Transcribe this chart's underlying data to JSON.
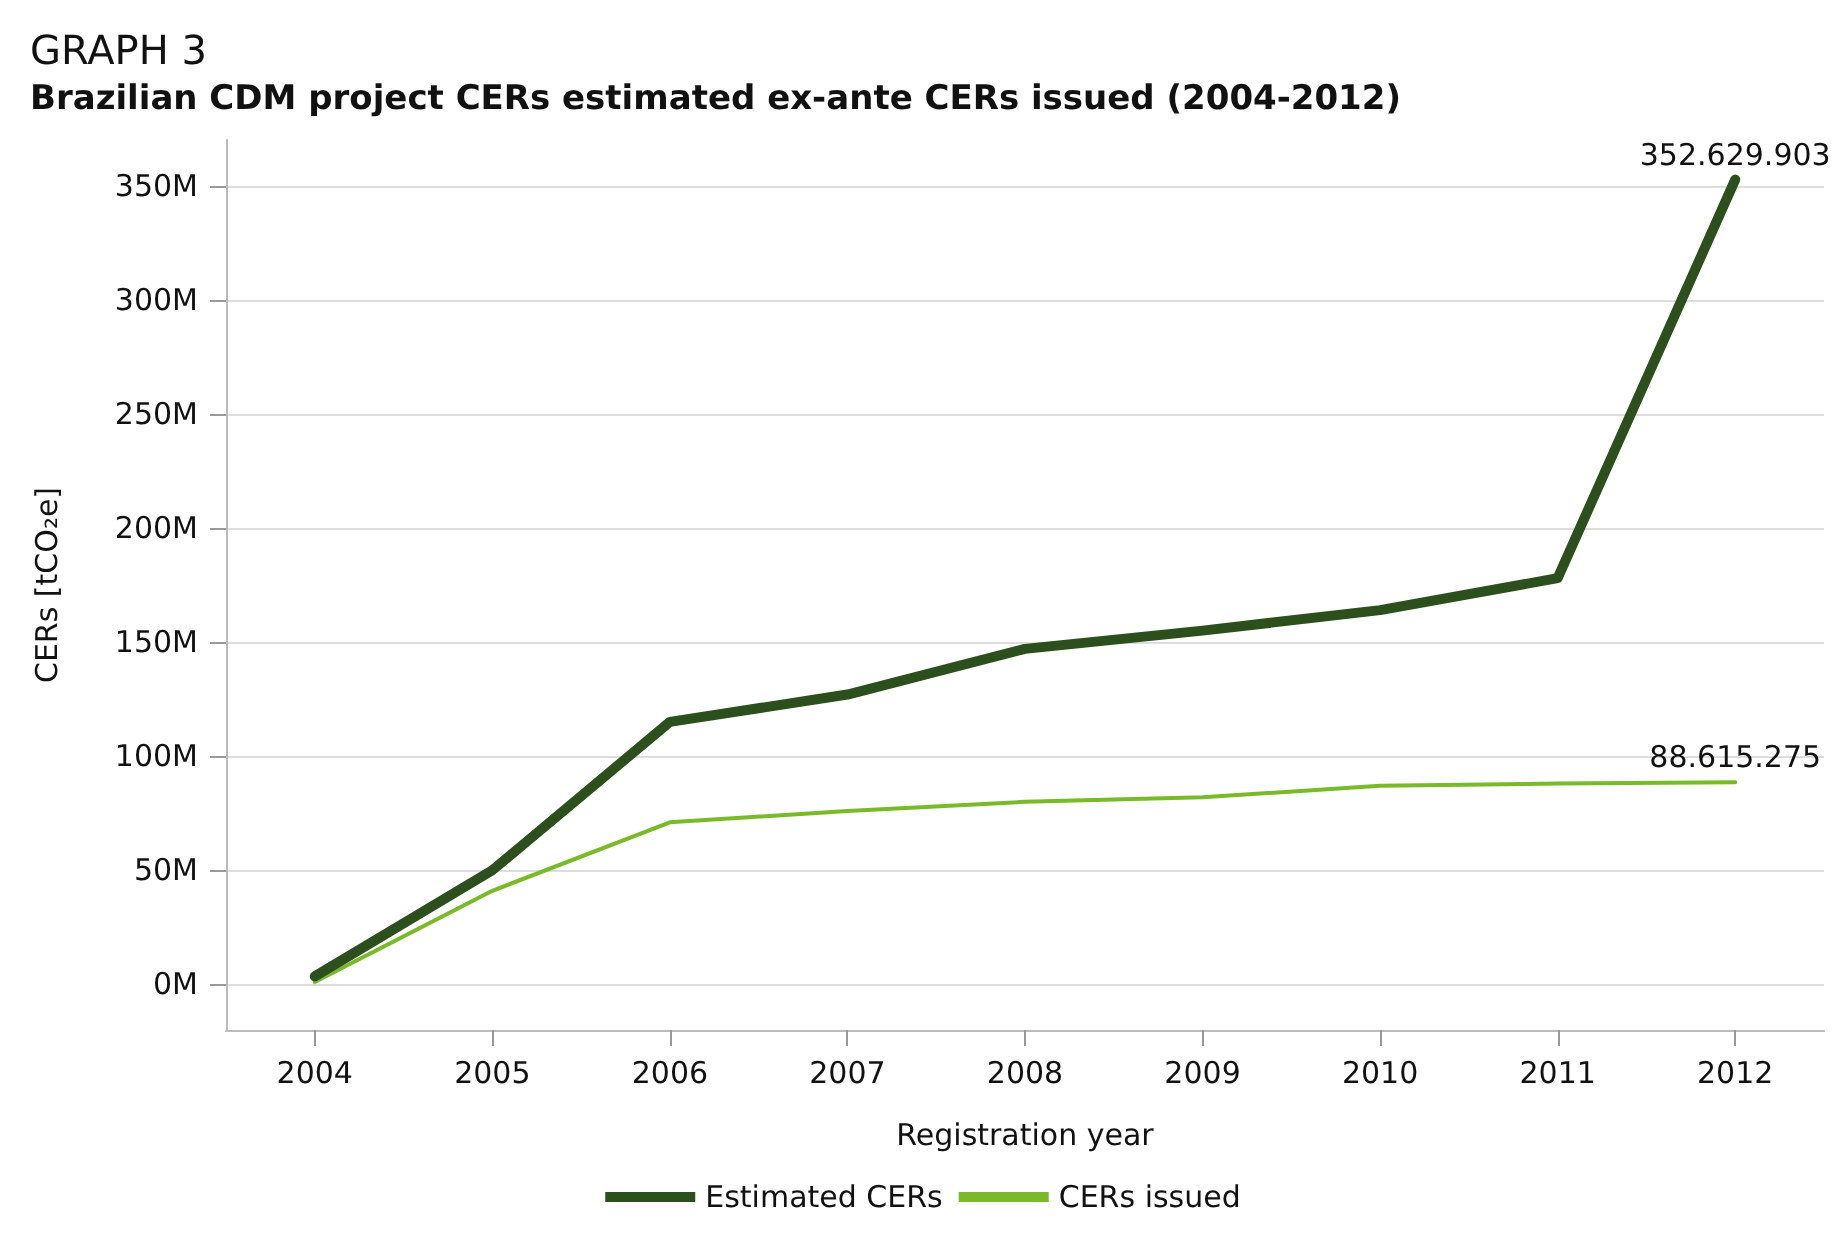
{
  "chart_data": {
    "type": "line",
    "title": "GRAPH 3",
    "subtitle": "Brazilian CDM project CERs estimated ex-ante CERs issued (2004-2012)",
    "xlabel": "Registration year",
    "ylabel": "CERs [tCO₂e]",
    "categories": [
      "2004",
      "2005",
      "2006",
      "2007",
      "2008",
      "2009",
      "2010",
      "2011",
      "2012"
    ],
    "series": [
      {
        "name": "Estimated CERs",
        "color": "#2d4f1e",
        "values": [
          3500000,
          50000000,
          115000000,
          127000000,
          147000000,
          155000000,
          164000000,
          178000000,
          352629903
        ],
        "value_labels": [
          null,
          null,
          null,
          null,
          null,
          null,
          null,
          null,
          "352.629.903"
        ]
      },
      {
        "name": "CERs issued",
        "color": "#7ab929",
        "values": [
          1000000,
          41000000,
          71000000,
          76000000,
          80000000,
          82000000,
          87000000,
          88000000,
          88615275
        ],
        "value_labels": [
          null,
          null,
          null,
          null,
          null,
          null,
          null,
          null,
          "88.615.275"
        ]
      }
    ],
    "ylim": [
      -20000000,
      370000000
    ],
    "yticks": [
      {
        "value": 0,
        "label": "0M"
      },
      {
        "value": 50000000,
        "label": "50M"
      },
      {
        "value": 100000000,
        "label": "100M"
      },
      {
        "value": 150000000,
        "label": "150M"
      },
      {
        "value": 200000000,
        "label": "200M"
      },
      {
        "value": 250000000,
        "label": "250M"
      },
      {
        "value": 300000000,
        "label": "300M"
      },
      {
        "value": 350000000,
        "label": "350M"
      }
    ],
    "grid": "y",
    "legend": "bottom",
    "marker": "none",
    "line_style": "solid"
  }
}
